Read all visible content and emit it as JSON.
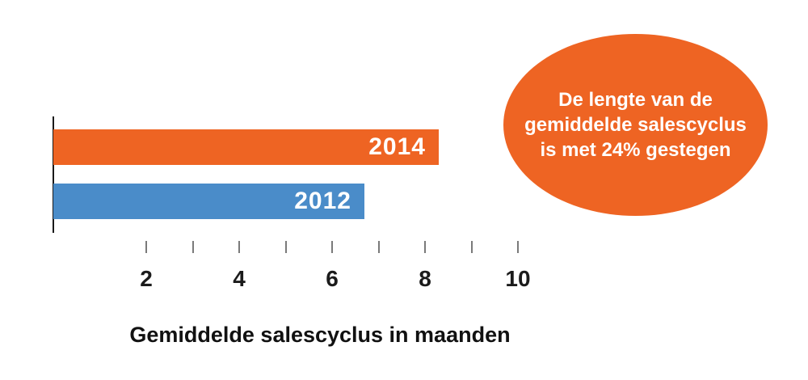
{
  "chart_data": {
    "type": "bar",
    "orientation": "horizontal",
    "title": "",
    "categories": [
      "2014",
      "2012"
    ],
    "values": [
      8.3,
      6.7
    ],
    "series_colors": [
      "#EE6423",
      "#4A8CC9"
    ],
    "xlabel": "Gemiddelde salescyclus in maanden",
    "x_tick_marks": [
      2,
      3,
      4,
      5,
      6,
      7,
      8,
      9,
      10
    ],
    "x_tick_labels": [
      2,
      4,
      6,
      8,
      10
    ],
    "xlim": [
      0,
      10.5
    ],
    "grid": false,
    "legend": "none",
    "bar_label_position": "inside-end",
    "annotation": "De lengte van de gemiddelde salescyclus is met 24% gestegen"
  },
  "callout": {
    "lines": [
      "De lengte van de",
      "gemiddelde salescyclus",
      "is met 24% gestegen"
    ],
    "fill_color": "#EE6423",
    "text_color": "#FFFFFF",
    "shape": "ellipse"
  },
  "colors": {
    "bar_2014": "#EE6423",
    "bar_2012": "#4A8CC9",
    "axis_line": "#1A1A1A",
    "tick_mark": "#7A7A7A",
    "text": "#1B1B1B",
    "background": "#FFFFFF"
  }
}
